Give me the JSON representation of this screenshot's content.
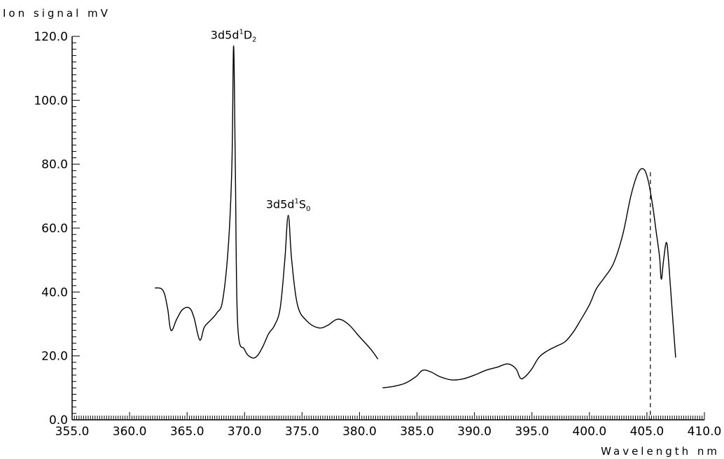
{
  "chart_data": {
    "type": "line",
    "title": "",
    "ylabel": "Ion signal mV",
    "xlabel": "Wavelength nm",
    "xlim": [
      355.0,
      410.0
    ],
    "ylim": [
      0.0,
      120.0
    ],
    "x_ticks": [
      "355.0",
      "360.0",
      "365.0",
      "370.0",
      "375.0",
      "380.0",
      "385.0",
      "390.0",
      "395.0",
      "400.0",
      "405.0",
      "410.0"
    ],
    "y_ticks": [
      "0.0",
      "20.0",
      "40.0",
      "60.0",
      "80.0",
      "100.0",
      "120.0"
    ],
    "grid": false,
    "series": [
      {
        "segment": 1,
        "x": [
          362.2,
          362.9,
          363.3,
          363.6,
          364.1,
          364.6,
          365.2,
          365.6,
          366.1,
          366.5,
          367.0,
          367.6,
          368.1,
          368.6,
          368.9,
          369.05,
          369.2,
          369.4,
          370.0,
          370.6,
          371.1,
          371.6,
          372.1,
          372.6,
          373.1,
          373.5,
          373.8,
          374.1,
          374.6,
          375.4,
          376.4,
          377.2,
          378.1,
          379.0,
          380.0,
          381.0,
          381.6
        ],
        "y": [
          41.3,
          40.5,
          35.0,
          28.0,
          31.5,
          34.5,
          35.0,
          32.0,
          25.0,
          29.0,
          31.0,
          33.5,
          37.5,
          55.0,
          80.0,
          117.0,
          78.0,
          30.0,
          22.0,
          19.5,
          20.0,
          23.0,
          27.0,
          29.5,
          35.0,
          50.0,
          64.0,
          50.0,
          36.0,
          31.0,
          28.8,
          29.5,
          31.5,
          30.0,
          26.0,
          22.0,
          19.0
        ]
      },
      {
        "segment": 2,
        "x": [
          382.0,
          383.0,
          384.0,
          384.9,
          385.5,
          386.2,
          387.0,
          388.0,
          389.0,
          390.0,
          391.0,
          392.0,
          392.9,
          393.6,
          394.0,
          394.4,
          395.0,
          395.6,
          396.3,
          397.1,
          397.9,
          398.6,
          399.2,
          400.0,
          400.6,
          401.3,
          402.1,
          402.9,
          403.6,
          404.2,
          404.7,
          405.1,
          405.5,
          405.8,
          406.1,
          406.25,
          406.45,
          406.7,
          406.9,
          407.2,
          407.5
        ],
        "y": [
          10.0,
          10.5,
          11.5,
          13.5,
          15.5,
          15.0,
          13.5,
          12.5,
          12.8,
          14.0,
          15.5,
          16.5,
          17.5,
          16.0,
          13.0,
          13.5,
          16.0,
          19.5,
          21.5,
          23.0,
          24.5,
          27.5,
          31.0,
          36.0,
          41.0,
          44.5,
          49.0,
          58.0,
          70.0,
          77.0,
          78.5,
          75.0,
          67.0,
          59.0,
          51.0,
          44.0,
          50.0,
          55.5,
          49.0,
          34.0,
          19.5
        ]
      }
    ],
    "annotations": [
      {
        "base": "3d5d",
        "sup": "1",
        "term": "D",
        "sub": "2",
        "x": 369.05,
        "y": 117.0
      },
      {
        "base": "3d5d",
        "sup": "1",
        "term": "S",
        "sub": "0",
        "x": 373.8,
        "y": 64.0
      }
    ],
    "reference_line": {
      "x": 405.3,
      "style": "dashed"
    }
  }
}
